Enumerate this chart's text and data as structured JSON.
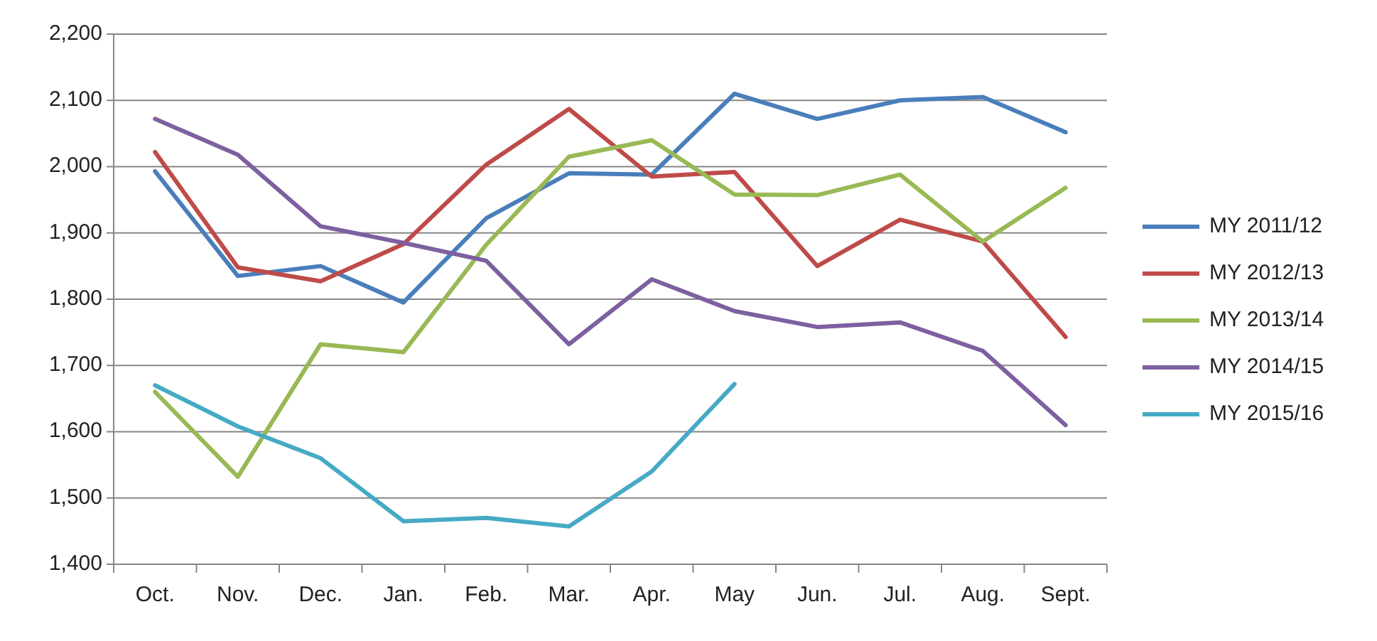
{
  "chart_data": {
    "type": "line",
    "categories": [
      "Oct.",
      "Nov.",
      "Dec.",
      "Jan.",
      "Feb.",
      "Mar.",
      "Apr.",
      "May",
      "Jun.",
      "Jul.",
      "Aug.",
      "Sept."
    ],
    "series": [
      {
        "name": "MY 2011/12",
        "color": "#4a7ebb",
        "values": [
          1993,
          1835,
          1850,
          1795,
          1922,
          1990,
          1988,
          2110,
          2072,
          2100,
          2105,
          2052
        ]
      },
      {
        "name": "MY 2012/13",
        "color": "#be4b48",
        "values": [
          2022,
          1848,
          1827,
          1883,
          2003,
          2087,
          1985,
          1992,
          1850,
          1920,
          1887,
          1743
        ]
      },
      {
        "name": "MY 2013/14",
        "color": "#98b954",
        "values": [
          1660,
          1532,
          1732,
          1720,
          1882,
          2015,
          2040,
          1958,
          1957,
          1988,
          1887,
          1968
        ]
      },
      {
        "name": "MY 2014/15",
        "color": "#7d60a0",
        "values": [
          2072,
          2018,
          1910,
          1885,
          1858,
          1732,
          1830,
          1782,
          1758,
          1765,
          1722,
          1610
        ]
      },
      {
        "name": "MY 2015/16",
        "color": "#46aac5",
        "values": [
          1670,
          1608,
          1560,
          1465,
          1470,
          1457,
          1540,
          1672,
          null,
          null,
          null,
          null
        ]
      }
    ],
    "ylim": [
      1400,
      2200
    ],
    "yticks": [
      {
        "value": 1400,
        "label": "1,400"
      },
      {
        "value": 1500,
        "label": "1,500"
      },
      {
        "value": 1600,
        "label": "1,600"
      },
      {
        "value": 1700,
        "label": "1,700"
      },
      {
        "value": 1800,
        "label": "1,800"
      },
      {
        "value": 1900,
        "label": "1,900"
      },
      {
        "value": 2000,
        "label": "2,000"
      },
      {
        "value": 2100,
        "label": "2,100"
      },
      {
        "value": 2200,
        "label": "2,200"
      }
    ],
    "grid": "y",
    "legend": "right",
    "marker": "none",
    "line_style": "solid"
  }
}
